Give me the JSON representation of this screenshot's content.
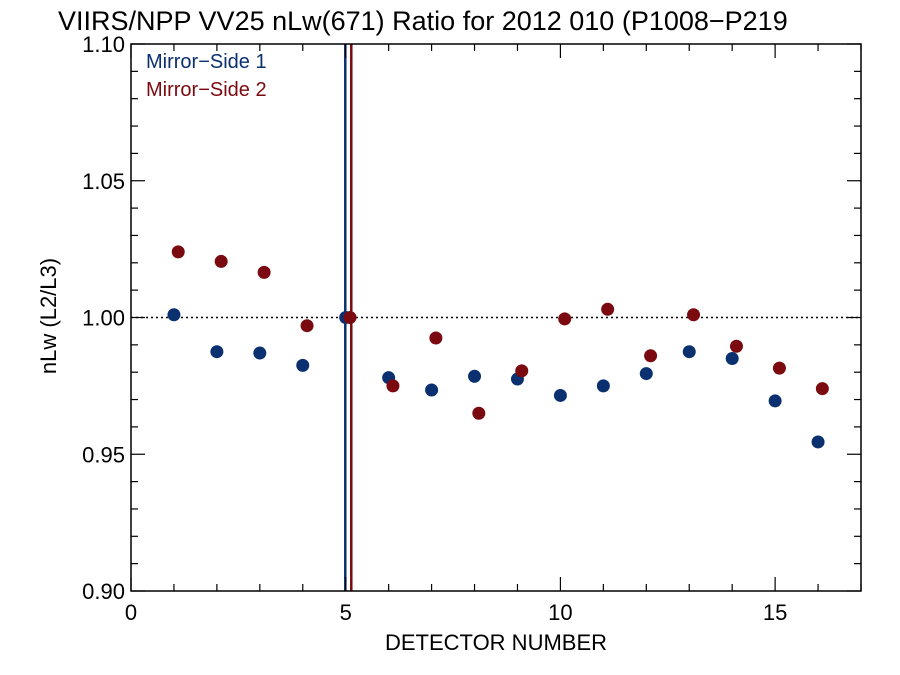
{
  "chart_data": {
    "type": "scatter",
    "title": "VIIRS/NPP VV25 nLw(671) Ratio for 2012 010 (P1008−P219",
    "xlabel": "DETECTOR NUMBER",
    "ylabel": "nLw (L2/L3)",
    "xlim": [
      0,
      17
    ],
    "ylim": [
      0.9,
      1.1
    ],
    "xticks": [
      0,
      5,
      10,
      15
    ],
    "xtick_labels": [
      "0",
      "5",
      "10",
      "15"
    ],
    "yticks": [
      0.9,
      0.95,
      1.0,
      1.05,
      1.1
    ],
    "ytick_labels": [
      "0.90",
      "0.95",
      "1.00",
      "1.05",
      "1.10"
    ],
    "reference_line_y": 1.0,
    "grid": false,
    "legend_position": "top-left",
    "series": [
      {
        "name": "Mirror−Side 1",
        "color": "#0a3070",
        "x": [
          1,
          2,
          3,
          4,
          5,
          6,
          7,
          8,
          9,
          10,
          11,
          12,
          13,
          14,
          15,
          16
        ],
        "y": [
          1.001,
          0.9875,
          0.987,
          0.9825,
          1.0,
          0.978,
          0.9735,
          0.9785,
          0.9775,
          0.9715,
          0.975,
          0.9795,
          0.9875,
          0.985,
          0.9695,
          0.9545
        ],
        "marker_line_x": 4.99
      },
      {
        "name": "Mirror−Side 2",
        "color": "#7a0a10",
        "x": [
          1.1,
          2.1,
          3.1,
          4.1,
          5.1,
          6.1,
          7.1,
          8.1,
          9.1,
          10.1,
          11.1,
          12.1,
          13.1,
          14.1,
          15.1,
          16.1
        ],
        "y": [
          1.024,
          1.0205,
          1.0165,
          0.997,
          1.0,
          0.975,
          0.9925,
          0.965,
          0.9805,
          0.9995,
          1.003,
          0.986,
          1.001,
          0.9895,
          0.9815,
          0.974
        ],
        "marker_line_x": 5.13
      }
    ]
  }
}
